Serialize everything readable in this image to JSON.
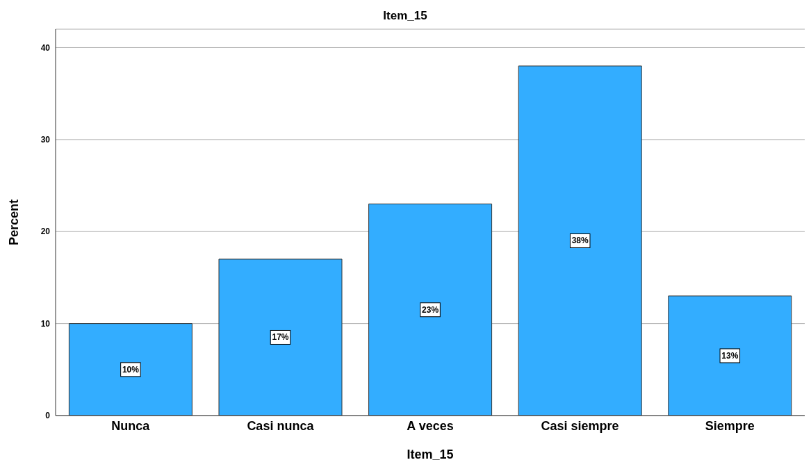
{
  "chart_data": {
    "type": "bar",
    "title": "Item_15",
    "xlabel": "Item_15",
    "ylabel": "Percent",
    "categories": [
      "Nunca",
      "Casi nunca",
      "A veces",
      "Casi siempre",
      "Siempre"
    ],
    "values": [
      10,
      17,
      23,
      38,
      13
    ],
    "value_labels": [
      "10%",
      "17%",
      "23%",
      "38%",
      "13%"
    ],
    "color": "#33adff",
    "ylim": [
      0,
      42
    ],
    "yticks": [
      0,
      10,
      20,
      30,
      40
    ],
    "grid": "y",
    "legend": false
  }
}
